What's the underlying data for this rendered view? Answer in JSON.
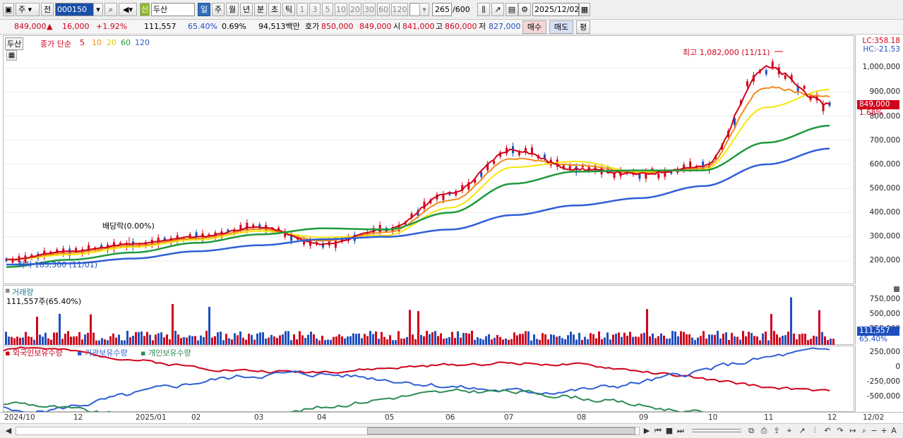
{
  "toolbar": {
    "type_label": "주",
    "prev_label": "전",
    "code": "000150",
    "name": "두산",
    "new_badge": "신",
    "periods": [
      "일",
      "주",
      "월",
      "년",
      "분",
      "초",
      "틱"
    ],
    "intervals": [
      "1",
      "3",
      "5",
      "10",
      "20",
      "30",
      "60",
      "120"
    ],
    "count": "265",
    "count_total": "/600",
    "date": "2025/12/02"
  },
  "quote": {
    "price": "849,000",
    "arrow": "▲",
    "change": "16,000",
    "change_pct": "+1.92%",
    "volume": "111,557",
    "vol_ratio": "65.40%",
    "turnover_pct": "0.69%",
    "amount": "94,513백만",
    "ask_label": "호가",
    "ask": "850,000",
    "bid": "849,000",
    "open_label": "시",
    "open": "841,000",
    "high_label": "고",
    "high": "860,000",
    "low_label": "저",
    "low": "827,000",
    "buy_label": "매수",
    "sell_label": "매도",
    "eval_label": "평"
  },
  "price_panel": {
    "stock_tag": "두산",
    "legend_main": "종가 단순",
    "ma": [
      {
        "period": "5",
        "color": "#d0021b"
      },
      {
        "period": "10",
        "color": "#f08a1c"
      },
      {
        "period": "20",
        "color": "#f5e60a"
      },
      {
        "period": "60",
        "color": "#1e9a3c"
      },
      {
        "period": "120",
        "color": "#2f5fd8"
      }
    ],
    "high_annotation": "최고 1,082,000 (11/11)",
    "low_annotation": "최저 185,300 (11/01)",
    "dividend_annotation": "배당락(0.00%)",
    "lc": "LC:358.18",
    "hc": "HC:-21.53",
    "current_price": "849,000",
    "current_pct": "1.68%",
    "y_labels": [
      "1,000,000",
      "900,000",
      "800,000",
      "700,000",
      "600,000",
      "500,000",
      "400,000",
      "300,000",
      "200,000"
    ]
  },
  "volume_panel": {
    "title": "거래량",
    "value_text": "111,557주(65.40%)",
    "y_labels": [
      "750,000",
      "500,000",
      "250,000"
    ],
    "current": "111,557",
    "current_pct": "65.40%"
  },
  "holdings_panel": {
    "series": [
      {
        "name": "외국인보유수량",
        "color": "#d0021b"
      },
      {
        "name": "기관보유수량",
        "color": "#2f5fd8"
      },
      {
        "name": "개인보유수량",
        "color": "#2e8b57"
      }
    ],
    "y_labels": [
      "250,000",
      "0",
      "-250,000",
      "-500,000"
    ]
  },
  "date_axis": {
    "labels": [
      "2024/10",
      "12",
      "2025/01",
      "02",
      "03",
      "04",
      "05",
      "06",
      "07",
      "08",
      "09",
      "10",
      "11",
      "12"
    ],
    "right_label": "12/02"
  },
  "chart_data": {
    "type": "line",
    "title": "두산",
    "y_range": [
      150000,
      1080000
    ],
    "x": [
      "2024/10",
      "12",
      "2025/01",
      "02",
      "03",
      "04",
      "05",
      "06",
      "07",
      "08",
      "09",
      "10",
      "11",
      "12"
    ],
    "series": [
      {
        "name": "종가",
        "values": [
          205000,
          240000,
          270000,
          300000,
          340000,
          270000,
          330000,
          480000,
          660000,
          580000,
          560000,
          590000,
          1000000,
          849000
        ]
      },
      {
        "name": "60",
        "values": [
          175000,
          205000,
          235000,
          275000,
          310000,
          335000,
          330000,
          400000,
          520000,
          570000,
          575000,
          575000,
          690000,
          760000
        ]
      },
      {
        "name": "120",
        "values": [
          185000,
          190000,
          210000,
          240000,
          265000,
          290000,
          300000,
          330000,
          390000,
          430000,
          460000,
          510000,
          600000,
          665000
        ]
      }
    ],
    "volume": [
      {
        "name": "거래량",
        "ylim": [
          0,
          900000
        ],
        "current": 111557
      }
    ]
  }
}
